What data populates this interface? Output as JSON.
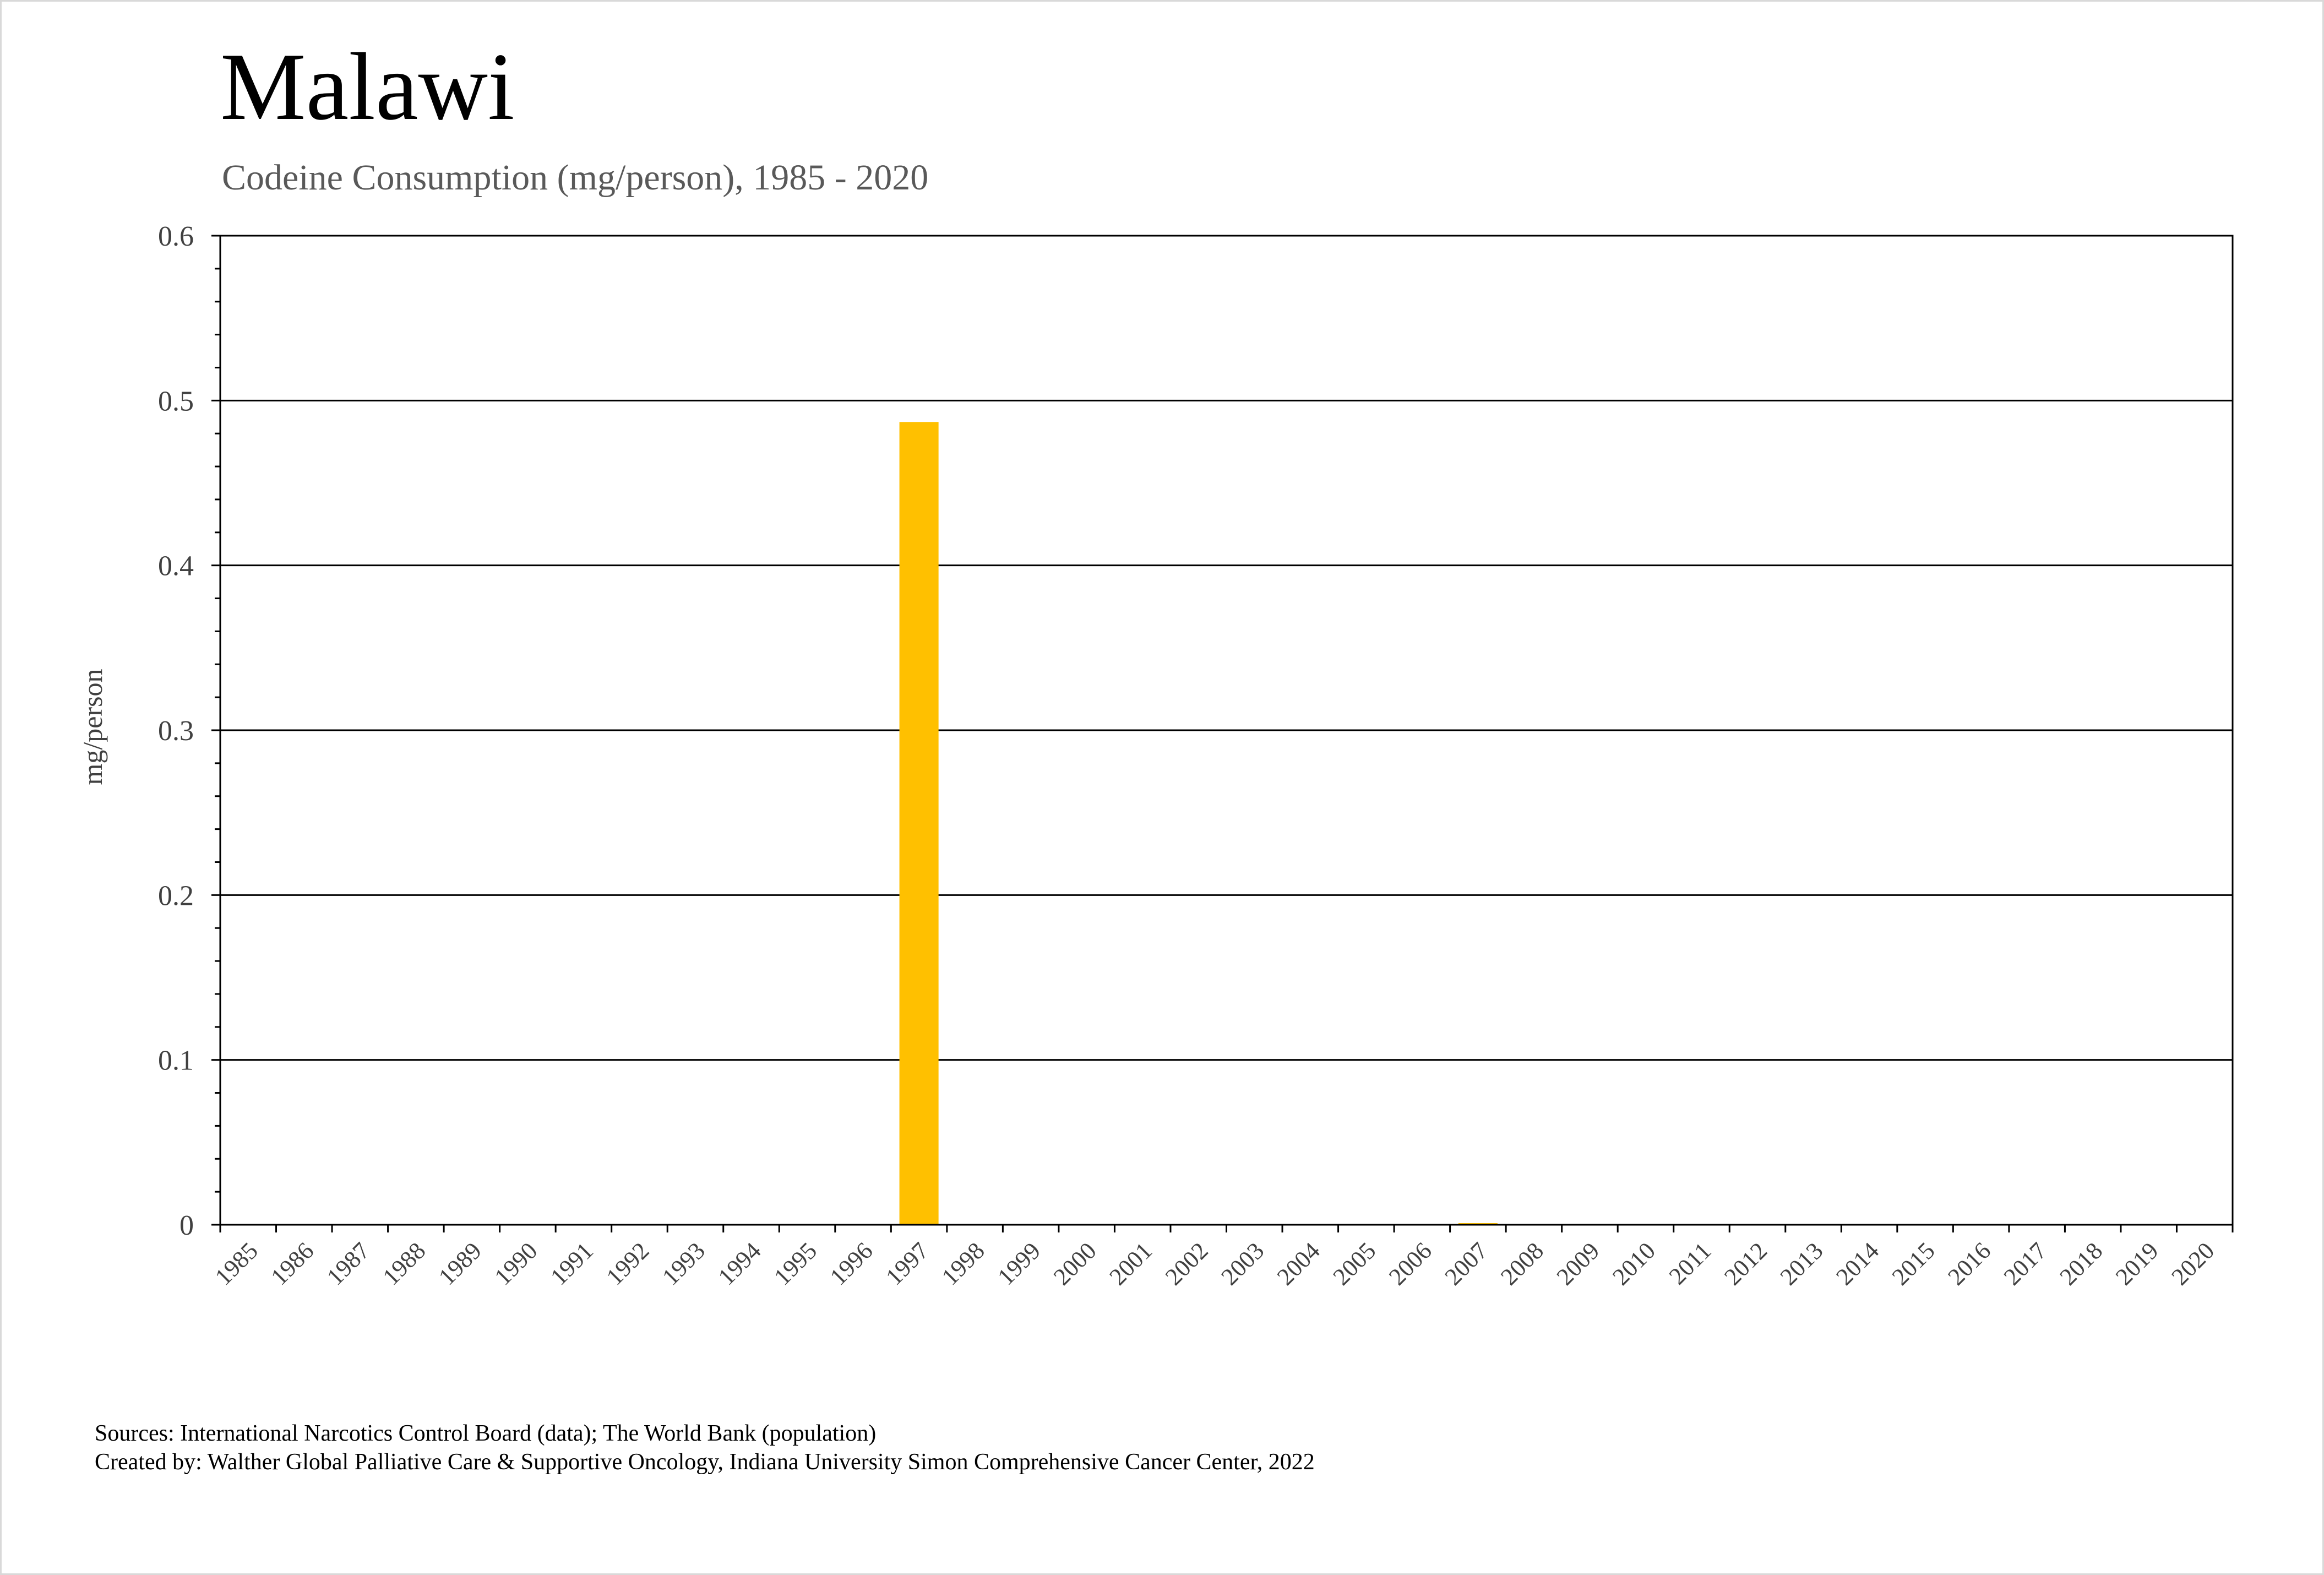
{
  "header": {
    "title": "Malawi",
    "subtitle": "Codeine Consumption (mg/person), 1985 - 2020"
  },
  "footer": {
    "sources": "Sources: International Narcotics Control Board (data); The World Bank (population)",
    "created_by": "Created by: Walther Global Palliative Care & Supportive Oncology, Indiana University Simon Comprehensive Cancer Center, 2022"
  },
  "colors": {
    "bar": "#FFC000",
    "gridline": "#000000",
    "axis_text": "#404040"
  },
  "chart_data": {
    "type": "bar",
    "title": "Malawi",
    "subtitle": "Codeine Consumption (mg/person), 1985 - 2020",
    "xlabel": "",
    "ylabel": "mg/person",
    "ylim": [
      0,
      0.6
    ],
    "yticks": [
      "0",
      "0.1",
      "0.2",
      "0.3",
      "0.4",
      "0.5",
      "0.6"
    ],
    "grid": true,
    "legend": "none",
    "categories": [
      "1985",
      "1986",
      "1987",
      "1988",
      "1989",
      "1990",
      "1991",
      "1992",
      "1993",
      "1994",
      "1995",
      "1996",
      "1997",
      "1998",
      "1999",
      "2000",
      "2001",
      "2002",
      "2003",
      "2004",
      "2005",
      "2006",
      "2007",
      "2008",
      "2009",
      "2010",
      "2011",
      "2012",
      "2013",
      "2014",
      "2015",
      "2016",
      "2017",
      "2018",
      "2019",
      "2020"
    ],
    "values": [
      0,
      0,
      0,
      0,
      0,
      0,
      0,
      0,
      0,
      0,
      0,
      0,
      0.487,
      0,
      0,
      0,
      0,
      0,
      0,
      0,
      0,
      0,
      0.001,
      0,
      0,
      0,
      0,
      0,
      0,
      0,
      0,
      0,
      0,
      0,
      0,
      0
    ]
  }
}
